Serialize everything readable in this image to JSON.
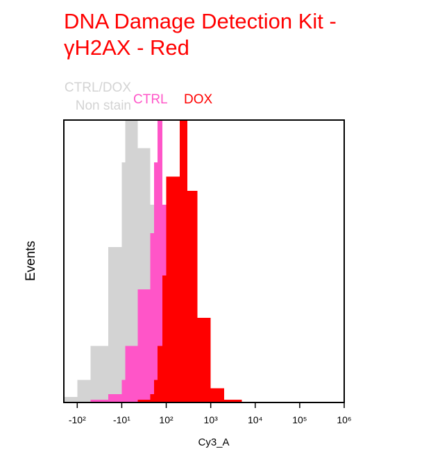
{
  "chart_data": {
    "type": "histogram",
    "title": "DNA Damage Detection Kit - γH2AX - Red",
    "xlabel": "Cy3_A",
    "ylabel": "Events",
    "xscale": "biexponential",
    "bins": [
      -200,
      -100,
      -50,
      -20,
      -10,
      -5,
      0,
      5,
      10,
      20,
      50,
      100,
      200,
      300,
      500,
      1000,
      2000,
      5000
    ],
    "series": [
      {
        "name": "CTRL/DOX\nNon stain",
        "color": "#d3d3d3",
        "values": [
          2,
          8,
          20,
          55,
          85,
          100,
          90,
          70,
          45,
          20,
          5,
          0,
          0,
          0,
          0,
          0,
          0
        ]
      },
      {
        "name": "CTRL",
        "color": "#ff55c8",
        "values": [
          0,
          0,
          1,
          3,
          8,
          20,
          40,
          60,
          85,
          100,
          70,
          25,
          8,
          2,
          0,
          0,
          0
        ]
      },
      {
        "name": "DOX",
        "color": "#ff0000",
        "values": [
          0,
          0,
          0,
          0,
          0,
          0,
          1,
          3,
          8,
          20,
          45,
          80,
          100,
          75,
          30,
          5,
          1
        ]
      }
    ],
    "xlim": [
      -200,
      1000000
    ],
    "xticks": [
      {
        "value": -100,
        "label": "-10²"
      },
      {
        "value": -10,
        "label": "-10¹"
      },
      {
        "value": 100,
        "label": "10²"
      },
      {
        "value": 1000,
        "label": "10³"
      },
      {
        "value": 10000,
        "label": "10⁴"
      },
      {
        "value": 100000,
        "label": "10⁵"
      },
      {
        "value": 1000000,
        "label": "10⁶"
      }
    ],
    "ylim": [
      0,
      100
    ]
  }
}
